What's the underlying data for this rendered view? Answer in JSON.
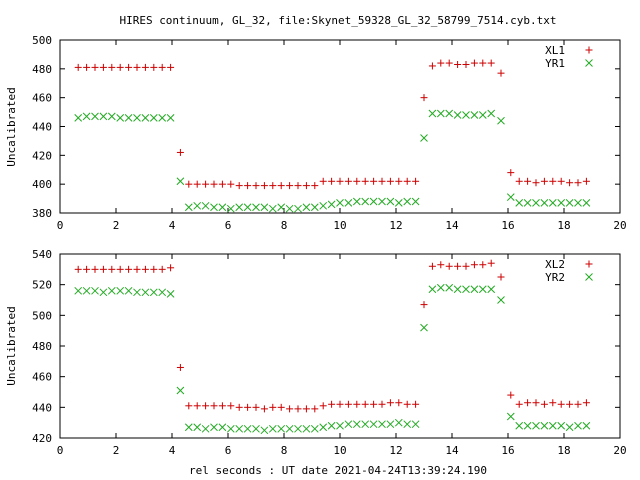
{
  "title": "HIRES continuum, GL_32, file:Skynet_59328_GL_32_58799_7514.cyb.txt",
  "colors": {
    "red": "#cc0000",
    "green": "#22aa22"
  },
  "chart_data": [
    {
      "type": "scatter",
      "xlabel": "",
      "ylabel": "Uncalibrated",
      "xlim": [
        0,
        20
      ],
      "ylim": [
        380,
        500
      ],
      "xticks": [
        "0",
        "2",
        "4",
        "6",
        "8",
        "10",
        "12",
        "14",
        "16",
        "18",
        "20"
      ],
      "yticks": [
        "380",
        "400",
        "420",
        "440",
        "460",
        "480",
        "500"
      ],
      "legend_position": "top-right",
      "series": [
        {
          "name": "XL1",
          "marker": "plus",
          "color": "#cc0000",
          "points": [
            [
              0.65,
              481
            ],
            [
              0.95,
              481
            ],
            [
              1.25,
              481
            ],
            [
              1.55,
              481
            ],
            [
              1.85,
              481
            ],
            [
              2.15,
              481
            ],
            [
              2.45,
              481
            ],
            [
              2.75,
              481
            ],
            [
              3.05,
              481
            ],
            [
              3.35,
              481
            ],
            [
              3.65,
              481
            ],
            [
              3.95,
              481
            ],
            [
              4.3,
              422
            ],
            [
              4.6,
              400
            ],
            [
              4.9,
              400
            ],
            [
              5.2,
              400
            ],
            [
              5.5,
              400
            ],
            [
              5.8,
              400
            ],
            [
              6.1,
              400
            ],
            [
              6.4,
              399
            ],
            [
              6.7,
              399
            ],
            [
              7.0,
              399
            ],
            [
              7.3,
              399
            ],
            [
              7.6,
              399
            ],
            [
              7.9,
              399
            ],
            [
              8.2,
              399
            ],
            [
              8.5,
              399
            ],
            [
              8.8,
              399
            ],
            [
              9.1,
              399
            ],
            [
              9.4,
              402
            ],
            [
              9.7,
              402
            ],
            [
              10.0,
              402
            ],
            [
              10.3,
              402
            ],
            [
              10.6,
              402
            ],
            [
              10.9,
              402
            ],
            [
              11.2,
              402
            ],
            [
              11.5,
              402
            ],
            [
              11.8,
              402
            ],
            [
              12.1,
              402
            ],
            [
              12.4,
              402
            ],
            [
              12.7,
              402
            ],
            [
              13.0,
              460
            ],
            [
              13.3,
              482
            ],
            [
              13.6,
              484
            ],
            [
              13.9,
              484
            ],
            [
              14.2,
              483
            ],
            [
              14.5,
              483
            ],
            [
              14.8,
              484
            ],
            [
              15.1,
              484
            ],
            [
              15.4,
              484
            ],
            [
              15.75,
              477
            ],
            [
              16.1,
              408
            ],
            [
              16.4,
              402
            ],
            [
              16.7,
              402
            ],
            [
              17.0,
              401
            ],
            [
              17.3,
              402
            ],
            [
              17.6,
              402
            ],
            [
              17.9,
              402
            ],
            [
              18.2,
              401
            ],
            [
              18.5,
              401
            ],
            [
              18.8,
              402
            ]
          ]
        },
        {
          "name": "YR1",
          "marker": "cross",
          "color": "#22aa22",
          "points": [
            [
              0.65,
              446
            ],
            [
              0.95,
              447
            ],
            [
              1.25,
              447
            ],
            [
              1.55,
              447
            ],
            [
              1.85,
              447
            ],
            [
              2.15,
              446
            ],
            [
              2.45,
              446
            ],
            [
              2.75,
              446
            ],
            [
              3.05,
              446
            ],
            [
              3.35,
              446
            ],
            [
              3.65,
              446
            ],
            [
              3.95,
              446
            ],
            [
              4.3,
              402
            ],
            [
              4.6,
              384
            ],
            [
              4.9,
              385
            ],
            [
              5.2,
              385
            ],
            [
              5.5,
              384
            ],
            [
              5.8,
              384
            ],
            [
              6.1,
              383
            ],
            [
              6.4,
              384
            ],
            [
              6.7,
              384
            ],
            [
              7.0,
              384
            ],
            [
              7.3,
              384
            ],
            [
              7.6,
              383
            ],
            [
              7.9,
              384
            ],
            [
              8.2,
              383
            ],
            [
              8.5,
              383
            ],
            [
              8.8,
              384
            ],
            [
              9.1,
              384
            ],
            [
              9.4,
              385
            ],
            [
              9.7,
              386
            ],
            [
              10.0,
              387
            ],
            [
              10.3,
              387
            ],
            [
              10.6,
              388
            ],
            [
              10.9,
              388
            ],
            [
              11.2,
              388
            ],
            [
              11.5,
              388
            ],
            [
              11.8,
              388
            ],
            [
              12.1,
              387
            ],
            [
              12.4,
              388
            ],
            [
              12.7,
              388
            ],
            [
              13.0,
              432
            ],
            [
              13.3,
              449
            ],
            [
              13.6,
              449
            ],
            [
              13.9,
              449
            ],
            [
              14.2,
              448
            ],
            [
              14.5,
              448
            ],
            [
              14.8,
              448
            ],
            [
              15.1,
              448
            ],
            [
              15.4,
              449
            ],
            [
              15.75,
              444
            ],
            [
              16.1,
              391
            ],
            [
              16.4,
              387
            ],
            [
              16.7,
              387
            ],
            [
              17.0,
              387
            ],
            [
              17.3,
              387
            ],
            [
              17.6,
              387
            ],
            [
              17.9,
              387
            ],
            [
              18.2,
              387
            ],
            [
              18.5,
              387
            ],
            [
              18.8,
              387
            ]
          ]
        }
      ]
    },
    {
      "type": "scatter",
      "xlabel": "rel seconds : UT date 2021-04-24T13:39:24.190",
      "ylabel": "Uncalibrated",
      "xlim": [
        0,
        20
      ],
      "ylim": [
        420,
        540
      ],
      "xticks": [
        "0",
        "2",
        "4",
        "6",
        "8",
        "10",
        "12",
        "14",
        "16",
        "18",
        "20"
      ],
      "yticks": [
        "420",
        "440",
        "460",
        "480",
        "500",
        "520",
        "540"
      ],
      "legend_position": "top-right",
      "series": [
        {
          "name": "XL2",
          "marker": "plus",
          "color": "#cc0000",
          "points": [
            [
              0.65,
              530
            ],
            [
              0.95,
              530
            ],
            [
              1.25,
              530
            ],
            [
              1.55,
              530
            ],
            [
              1.85,
              530
            ],
            [
              2.15,
              530
            ],
            [
              2.45,
              530
            ],
            [
              2.75,
              530
            ],
            [
              3.05,
              530
            ],
            [
              3.35,
              530
            ],
            [
              3.65,
              530
            ],
            [
              3.95,
              531
            ],
            [
              4.3,
              466
            ],
            [
              4.6,
              441
            ],
            [
              4.9,
              441
            ],
            [
              5.2,
              441
            ],
            [
              5.5,
              441
            ],
            [
              5.8,
              441
            ],
            [
              6.1,
              441
            ],
            [
              6.4,
              440
            ],
            [
              6.7,
              440
            ],
            [
              7.0,
              440
            ],
            [
              7.3,
              439
            ],
            [
              7.6,
              440
            ],
            [
              7.9,
              440
            ],
            [
              8.2,
              439
            ],
            [
              8.5,
              439
            ],
            [
              8.8,
              439
            ],
            [
              9.1,
              439
            ],
            [
              9.4,
              441
            ],
            [
              9.7,
              442
            ],
            [
              10.0,
              442
            ],
            [
              10.3,
              442
            ],
            [
              10.6,
              442
            ],
            [
              10.9,
              442
            ],
            [
              11.2,
              442
            ],
            [
              11.5,
              442
            ],
            [
              11.8,
              443
            ],
            [
              12.1,
              443
            ],
            [
              12.4,
              442
            ],
            [
              12.7,
              442
            ],
            [
              13.0,
              507
            ],
            [
              13.3,
              532
            ],
            [
              13.6,
              533
            ],
            [
              13.9,
              532
            ],
            [
              14.2,
              532
            ],
            [
              14.5,
              532
            ],
            [
              14.8,
              533
            ],
            [
              15.1,
              533
            ],
            [
              15.4,
              534
            ],
            [
              15.75,
              525
            ],
            [
              16.1,
              448
            ],
            [
              16.4,
              442
            ],
            [
              16.7,
              443
            ],
            [
              17.0,
              443
            ],
            [
              17.3,
              442
            ],
            [
              17.6,
              443
            ],
            [
              17.9,
              442
            ],
            [
              18.2,
              442
            ],
            [
              18.5,
              442
            ],
            [
              18.8,
              443
            ]
          ]
        },
        {
          "name": "YR2",
          "marker": "cross",
          "color": "#22aa22",
          "points": [
            [
              0.65,
              516
            ],
            [
              0.95,
              516
            ],
            [
              1.25,
              516
            ],
            [
              1.55,
              515
            ],
            [
              1.85,
              516
            ],
            [
              2.15,
              516
            ],
            [
              2.45,
              516
            ],
            [
              2.75,
              515
            ],
            [
              3.05,
              515
            ],
            [
              3.35,
              515
            ],
            [
              3.65,
              515
            ],
            [
              3.95,
              514
            ],
            [
              4.3,
              451
            ],
            [
              4.6,
              427
            ],
            [
              4.9,
              427
            ],
            [
              5.2,
              426
            ],
            [
              5.5,
              427
            ],
            [
              5.8,
              427
            ],
            [
              6.1,
              426
            ],
            [
              6.4,
              426
            ],
            [
              6.7,
              426
            ],
            [
              7.0,
              426
            ],
            [
              7.3,
              425
            ],
            [
              7.6,
              426
            ],
            [
              7.9,
              426
            ],
            [
              8.2,
              426
            ],
            [
              8.5,
              426
            ],
            [
              8.8,
              426
            ],
            [
              9.1,
              426
            ],
            [
              9.4,
              427
            ],
            [
              9.7,
              428
            ],
            [
              10.0,
              428
            ],
            [
              10.3,
              429
            ],
            [
              10.6,
              429
            ],
            [
              10.9,
              429
            ],
            [
              11.2,
              429
            ],
            [
              11.5,
              429
            ],
            [
              11.8,
              429
            ],
            [
              12.1,
              430
            ],
            [
              12.4,
              429
            ],
            [
              12.7,
              429
            ],
            [
              13.0,
              492
            ],
            [
              13.3,
              517
            ],
            [
              13.6,
              518
            ],
            [
              13.9,
              518
            ],
            [
              14.2,
              517
            ],
            [
              14.5,
              517
            ],
            [
              14.8,
              517
            ],
            [
              15.1,
              517
            ],
            [
              15.4,
              517
            ],
            [
              15.75,
              510
            ],
            [
              16.1,
              434
            ],
            [
              16.4,
              428
            ],
            [
              16.7,
              428
            ],
            [
              17.0,
              428
            ],
            [
              17.3,
              428
            ],
            [
              17.6,
              428
            ],
            [
              17.9,
              428
            ],
            [
              18.2,
              427
            ],
            [
              18.5,
              428
            ],
            [
              18.8,
              428
            ]
          ]
        }
      ]
    }
  ]
}
